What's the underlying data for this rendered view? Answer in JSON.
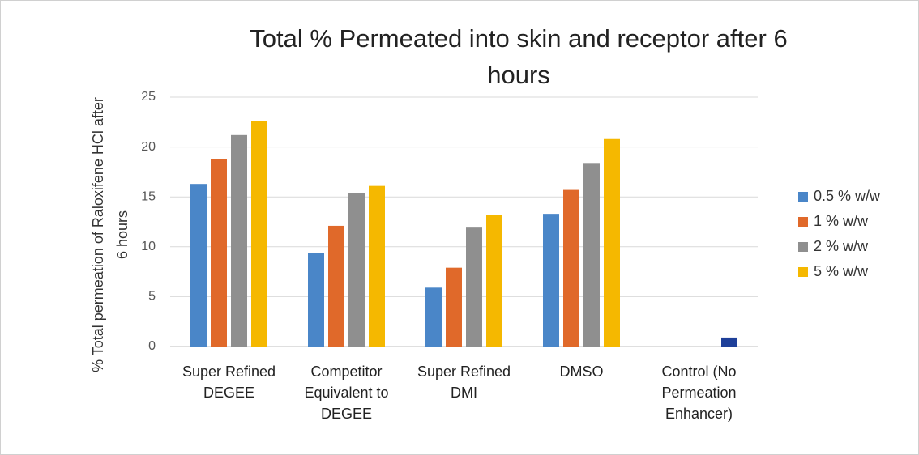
{
  "chart_data": {
    "type": "bar",
    "title": "Total % Permeated into skin and receptor after 6 hours",
    "y_label": "% Total permeation of Raloxifene HCl after 6 hours",
    "categories": [
      "Super Refined DEGEE",
      "Competitor Equivalent to DEGEE",
      "Super Refined DMI",
      "DMSO",
      "Control (No Permeation Enhancer)"
    ],
    "series": [
      {
        "name": "0.5 % w/w",
        "color": "#4a86c8",
        "values": [
          16.3,
          9.4,
          5.9,
          13.3,
          0
        ]
      },
      {
        "name": "1 % w/w",
        "color": "#e0692a",
        "values": [
          18.8,
          12.1,
          7.9,
          15.7,
          0
        ]
      },
      {
        "name": "2 % w/w",
        "color": "#8f8f8f",
        "values": [
          21.2,
          15.4,
          12.0,
          18.4,
          0
        ]
      },
      {
        "name": "5 % w/w",
        "color": "#f5b800",
        "values": [
          22.6,
          16.1,
          13.2,
          20.8,
          0.9
        ],
        "point_colors": {
          "4": "#1e3f99"
        }
      }
    ],
    "ylim": [
      0,
      25
    ],
    "yticks": [
      0,
      5,
      10,
      15,
      20,
      25
    ],
    "grid": true,
    "legend": "right"
  }
}
